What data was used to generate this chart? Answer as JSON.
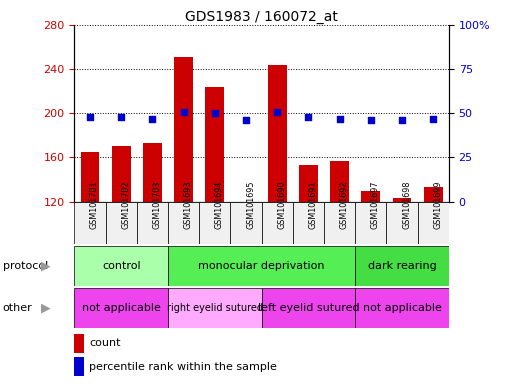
{
  "title": "GDS1983 / 160072_at",
  "samples": [
    "GSM101701",
    "GSM101702",
    "GSM101703",
    "GSM101693",
    "GSM101694",
    "GSM101695",
    "GSM101690",
    "GSM101691",
    "GSM101692",
    "GSM101697",
    "GSM101698",
    "GSM101699"
  ],
  "count_values": [
    165,
    170,
    173,
    251,
    224,
    119,
    244,
    153,
    157,
    130,
    123,
    133
  ],
  "percentile_values": [
    48,
    48,
    47,
    51,
    50,
    46,
    51,
    48,
    47,
    46,
    46,
    47
  ],
  "ylim_left": [
    120,
    280
  ],
  "ylim_right": [
    0,
    100
  ],
  "yticks_left": [
    120,
    160,
    200,
    240,
    280
  ],
  "yticks_right": [
    0,
    25,
    50,
    75,
    100
  ],
  "ytick_right_labels": [
    "0",
    "25",
    "50",
    "75",
    "100%"
  ],
  "bar_color": "#cc0000",
  "dot_color": "#0000cc",
  "protocol_groups": [
    {
      "label": "control",
      "start": 0,
      "end": 3,
      "color": "#aaffaa"
    },
    {
      "label": "monocular deprivation",
      "start": 3,
      "end": 9,
      "color": "#55ee55"
    },
    {
      "label": "dark rearing",
      "start": 9,
      "end": 12,
      "color": "#44dd44"
    }
  ],
  "other_groups": [
    {
      "label": "not applicable",
      "start": 0,
      "end": 3,
      "color": "#ee44ee"
    },
    {
      "label": "right eyelid sutured",
      "start": 3,
      "end": 6,
      "color": "#ffaaff"
    },
    {
      "label": "left eyelid sutured",
      "start": 6,
      "end": 9,
      "color": "#ee44ee"
    },
    {
      "label": "not applicable",
      "start": 9,
      "end": 12,
      "color": "#ee44ee"
    }
  ],
  "legend_count_label": "count",
  "legend_pct_label": "percentile rank within the sample",
  "protocol_label": "protocol",
  "other_label": "other",
  "tick_label_color_left": "#cc0000",
  "tick_label_color_right": "#0000cc",
  "grid_color": "#000000",
  "bg_color": "#f0f0f0",
  "bar_bottom": 120
}
